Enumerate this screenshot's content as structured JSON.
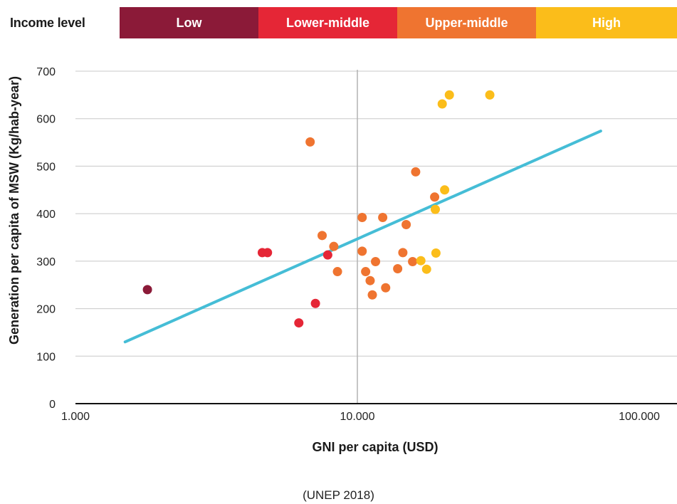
{
  "legend": {
    "title": "Income level",
    "items": [
      {
        "label": "Low",
        "color": "#8b1a38"
      },
      {
        "label": "Lower-middle",
        "color": "#e52636"
      },
      {
        "label": "Upper-middle",
        "color": "#ef7430"
      },
      {
        "label": "High",
        "color": "#fbbd1a"
      }
    ]
  },
  "source": "(UNEP 2018)",
  "chart_data": {
    "type": "scatter",
    "title": "",
    "xlabel": "GNI per capita (USD)",
    "ylabel": "Generation per capita of MSW (Kg/hab-year)",
    "xscale": "log",
    "xlim": [
      1000,
      100000
    ],
    "ylim": [
      0,
      700
    ],
    "xticks": [
      1000,
      10000,
      100000
    ],
    "xtick_labels": [
      "1.000",
      "10.000",
      "100.000"
    ],
    "yticks": [
      0,
      100,
      200,
      300,
      400,
      500,
      600,
      700
    ],
    "grid": "horizontal",
    "legend_placement": "top",
    "trendline": {
      "color": "#45bdd6",
      "x": [
        1500,
        73000
      ],
      "y": [
        130,
        574
      ]
    },
    "series": [
      {
        "name": "Low",
        "color": "#8b1a38",
        "points": [
          [
            1800,
            240
          ]
        ]
      },
      {
        "name": "Lower-middle",
        "color": "#e52636",
        "points": [
          [
            4600,
            318
          ],
          [
            4800,
            318
          ],
          [
            6200,
            170
          ],
          [
            7100,
            211
          ],
          [
            7850,
            313
          ]
        ]
      },
      {
        "name": "Upper-middle",
        "color": "#ef7430",
        "points": [
          [
            6800,
            551
          ],
          [
            7500,
            354
          ],
          [
            8250,
            331
          ],
          [
            8500,
            278
          ],
          [
            10400,
            392
          ],
          [
            10400,
            321
          ],
          [
            10700,
            278
          ],
          [
            11100,
            259
          ],
          [
            11300,
            229
          ],
          [
            11600,
            299
          ],
          [
            12300,
            392
          ],
          [
            12600,
            244
          ],
          [
            13900,
            284
          ],
          [
            14500,
            318
          ],
          [
            14900,
            377
          ],
          [
            15700,
            299
          ],
          [
            16100,
            488
          ],
          [
            18800,
            435
          ]
        ]
      },
      {
        "name": "High",
        "color": "#fbbd1a",
        "points": [
          [
            16800,
            301
          ],
          [
            17600,
            283
          ],
          [
            18900,
            409
          ],
          [
            19000,
            317
          ],
          [
            20000,
            631
          ],
          [
            20400,
            450
          ],
          [
            21200,
            650
          ],
          [
            29500,
            650
          ]
        ]
      }
    ]
  }
}
